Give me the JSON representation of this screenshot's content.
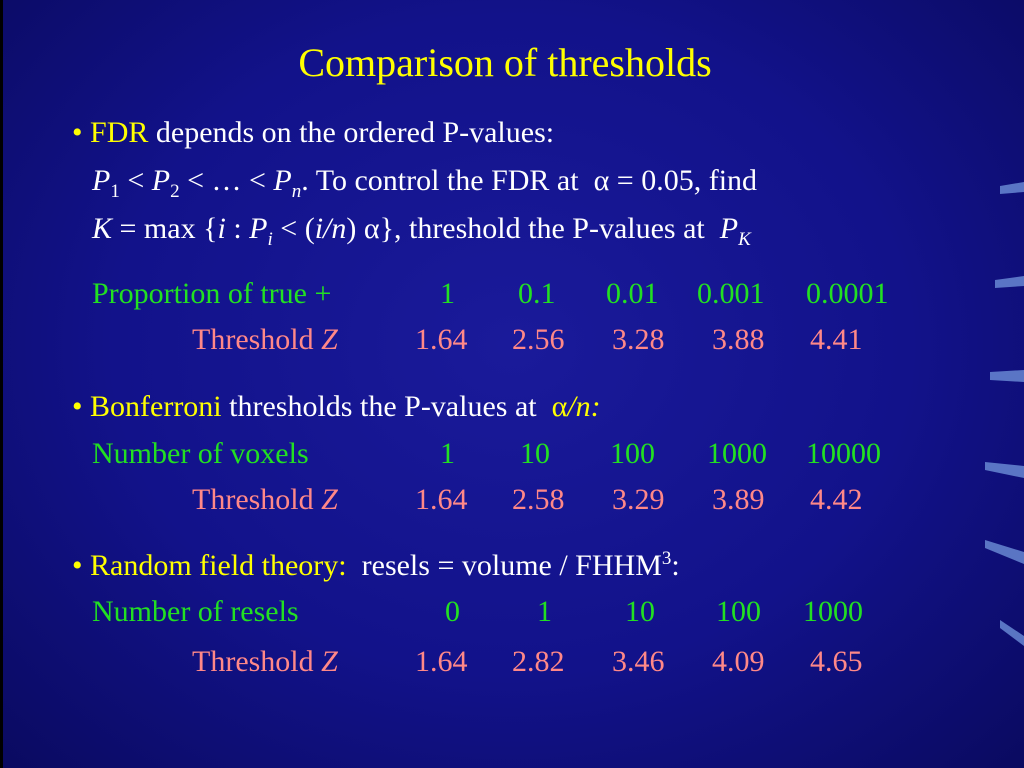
{
  "title": "Comparison of thresholds",
  "fdr": {
    "bullet": "•",
    "key": "FDR",
    "intro": "depends on the ordered P-values:",
    "line2": [
      "P",
      "1",
      "<",
      "P",
      "2",
      "< … <",
      "P",
      "n",
      ". To control the FDR at",
      "α = 0.05, find"
    ],
    "line3": [
      "K",
      "= max {",
      "i",
      ":",
      "P",
      "i",
      "< (",
      "i/n",
      ") α}, threshold the P-values at",
      "P",
      "K"
    ],
    "rows": [
      {
        "label": "Proportion of true +",
        "cells": [
          "1",
          "0.1",
          "0.01",
          "0.001",
          "0.0001"
        ]
      },
      {
        "label": "Threshold",
        "label_var": "Z",
        "cells": [
          "1.64",
          "2.56",
          "3.28",
          "3.88",
          "4.41"
        ]
      }
    ]
  },
  "bonferroni": {
    "bullet": "•",
    "key": "Bonferroni",
    "intro": "thresholds the P-values at",
    "alpha": "α",
    "rest": "/n:",
    "rows": [
      {
        "label": "Number of voxels",
        "cells": [
          "1",
          "10",
          "100",
          "1000",
          "10000"
        ]
      },
      {
        "label": "Threshold",
        "label_var": "Z",
        "cells": [
          "1.64",
          "2.58",
          "3.29",
          "3.89",
          "4.42"
        ]
      }
    ]
  },
  "rft": {
    "bullet": "•",
    "key": "Random field theory:",
    "intro": "resels = volume / FHHM",
    "sup": "3",
    "rest": ":",
    "rows": [
      {
        "label": "Number of resels",
        "cells": [
          "0",
          "1",
          "10",
          "100",
          "1000"
        ]
      },
      {
        "label": "Threshold",
        "label_var": "Z",
        "cells": [
          "1.64",
          "2.82",
          "3.46",
          "4.09",
          "4.65"
        ]
      }
    ]
  }
}
